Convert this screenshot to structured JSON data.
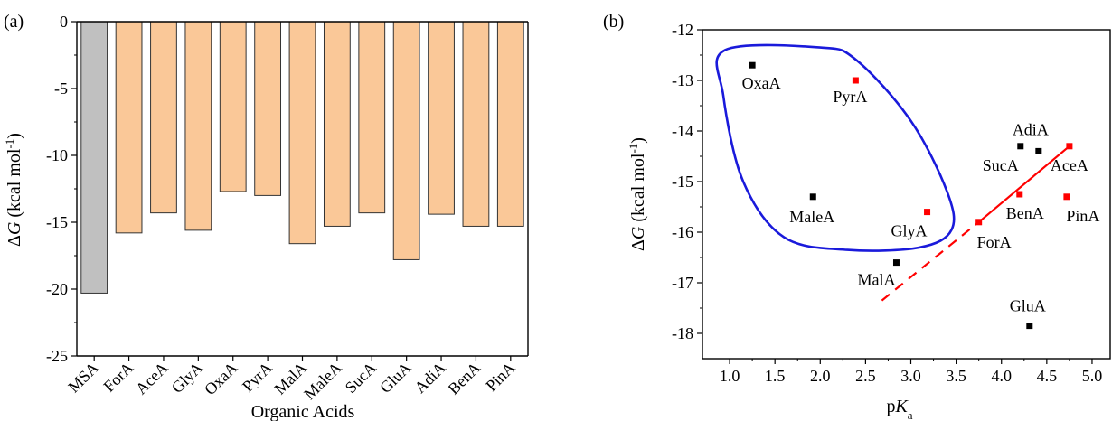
{
  "chart_data": [
    {
      "panel_label": "(a)",
      "type": "bar",
      "categories": [
        "MSA",
        "ForA",
        "AceA",
        "GlyA",
        "OxaA",
        "PyrA",
        "MalA",
        "MaleA",
        "SucA",
        "GluA",
        "AdiA",
        "BenA",
        "PinA"
      ],
      "values": [
        -20.3,
        -15.8,
        -14.3,
        -15.6,
        -12.7,
        -13.0,
        -16.6,
        -15.3,
        -14.3,
        -17.8,
        -14.4,
        -15.3,
        -15.3
      ],
      "xlabel": "Organic Acids",
      "ylabel": "ΔG (kcal mol-1)",
      "ylim": [
        -25,
        0
      ],
      "yticks": [
        0,
        -5,
        -10,
        -15,
        -20,
        -25
      ],
      "colors": {
        "MSA": "#c0c0c0",
        "others": "#fac898",
        "edge": "#333333"
      }
    },
    {
      "panel_label": "(b)",
      "type": "scatter",
      "xlabel": "pKa",
      "ylabel": "ΔG (kcal mol-1)",
      "xlim": [
        0.7,
        5.2
      ],
      "ylim": [
        -18.5,
        -12
      ],
      "xticks": [
        "1.0",
        "1.5",
        "2.0",
        "2.5",
        "3.0",
        "3.5",
        "4.0",
        "4.5",
        "5.0"
      ],
      "yticks": [
        "-12",
        "-13",
        "-14",
        "-15",
        "-16",
        "-17",
        "-18"
      ],
      "points": [
        {
          "label": "OxaA",
          "x": 1.25,
          "y": -12.7,
          "color": "#000000"
        },
        {
          "label": "PyrA",
          "x": 2.39,
          "y": -13.0,
          "color": "#ff0000"
        },
        {
          "label": "MaleA",
          "x": 1.92,
          "y": -15.3,
          "color": "#000000"
        },
        {
          "label": "GlyA",
          "x": 3.18,
          "y": -15.6,
          "color": "#ff0000"
        },
        {
          "label": "MalA",
          "x": 2.84,
          "y": -16.6,
          "color": "#000000"
        },
        {
          "label": "SucA",
          "x": 4.21,
          "y": -14.3,
          "color": "#000000"
        },
        {
          "label": "AdiA",
          "x": 4.41,
          "y": -14.4,
          "color": "#000000"
        },
        {
          "label": "AceA",
          "x": 4.75,
          "y": -14.3,
          "color": "#ff0000"
        },
        {
          "label": "BenA",
          "x": 4.2,
          "y": -15.25,
          "color": "#ff0000"
        },
        {
          "label": "PinA",
          "x": 4.72,
          "y": -15.3,
          "color": "#ff0000"
        },
        {
          "label": "ForA",
          "x": 3.75,
          "y": -15.8,
          "color": "#ff0000"
        },
        {
          "label": "GluA",
          "x": 4.31,
          "y": -17.85,
          "color": "#000000"
        }
      ],
      "fit_line": {
        "solid": {
          "x": [
            3.75,
            4.75
          ],
          "y": [
            -15.8,
            -14.3
          ]
        },
        "dashed": {
          "x": [
            2.68,
            3.75
          ],
          "y": [
            -17.35,
            -15.8
          ]
        },
        "color": "#ff0000"
      },
      "enclosure": {
        "color": "#1a1adb",
        "outline": [
          [
            0.95,
            -12.4
          ],
          [
            2.0,
            -12.35
          ],
          [
            2.4,
            -12.6
          ],
          [
            3.0,
            -13.8
          ],
          [
            3.4,
            -15.2
          ],
          [
            3.45,
            -15.95
          ],
          [
            3.1,
            -16.3
          ],
          [
            2.3,
            -16.35
          ],
          [
            1.6,
            -16.1
          ],
          [
            1.15,
            -15.0
          ],
          [
            0.93,
            -13.3
          ]
        ]
      }
    }
  ]
}
